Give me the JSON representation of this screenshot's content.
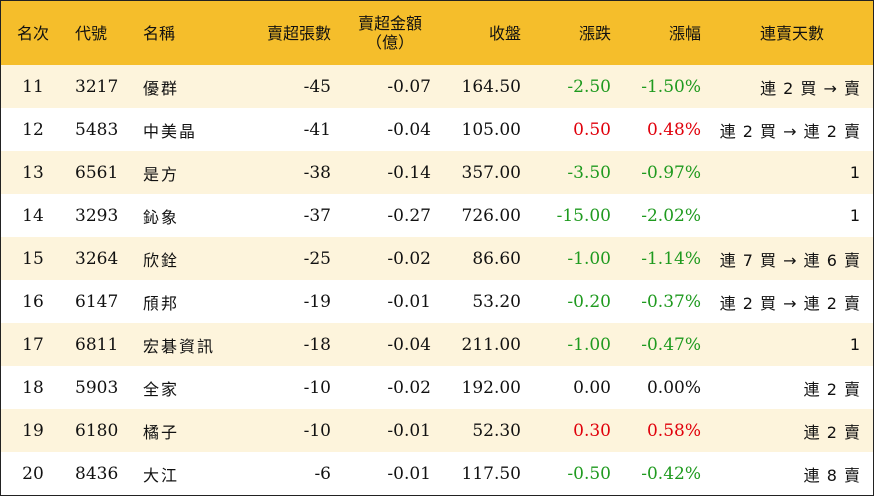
{
  "headers": {
    "rank": "名次",
    "code": "代號",
    "name": "名稱",
    "sell_lots": "賣超張數",
    "sell_amount_line1": "賣超金額",
    "sell_amount_line2": "（億）",
    "close": "收盤",
    "change": "漲跌",
    "pct": "漲幅",
    "days": "連賣天數"
  },
  "colors": {
    "header_bg": "#f5be2b",
    "stripe_bg": "#fdf4dc",
    "up": "#e0000b",
    "down": "#1f9a1f"
  },
  "rows": [
    {
      "rank": "11",
      "code": "3217",
      "name": "優群",
      "sell_lots": "-45",
      "sell_amount": "-0.07",
      "close": "164.50",
      "change": "-2.50",
      "pct": "-1.50%",
      "dir": "down",
      "days": "連 2 買 → 賣"
    },
    {
      "rank": "12",
      "code": "5483",
      "name": "中美晶",
      "sell_lots": "-41",
      "sell_amount": "-0.04",
      "close": "105.00",
      "change": "0.50",
      "pct": "0.48%",
      "dir": "up",
      "days": "連 2 買 → 連 2 賣"
    },
    {
      "rank": "13",
      "code": "6561",
      "name": "是方",
      "sell_lots": "-38",
      "sell_amount": "-0.14",
      "close": "357.00",
      "change": "-3.50",
      "pct": "-0.97%",
      "dir": "down",
      "days": "1"
    },
    {
      "rank": "14",
      "code": "3293",
      "name": "鈊象",
      "sell_lots": "-37",
      "sell_amount": "-0.27",
      "close": "726.00",
      "change": "-15.00",
      "pct": "-2.02%",
      "dir": "down",
      "days": "1"
    },
    {
      "rank": "15",
      "code": "3264",
      "name": "欣銓",
      "sell_lots": "-25",
      "sell_amount": "-0.02",
      "close": "86.60",
      "change": "-1.00",
      "pct": "-1.14%",
      "dir": "down",
      "days": "連 7 買 → 連 6 賣"
    },
    {
      "rank": "16",
      "code": "6147",
      "name": "頎邦",
      "sell_lots": "-19",
      "sell_amount": "-0.01",
      "close": "53.20",
      "change": "-0.20",
      "pct": "-0.37%",
      "dir": "down",
      "days": "連 2 買 → 連 2 賣"
    },
    {
      "rank": "17",
      "code": "6811",
      "name": "宏碁資訊",
      "sell_lots": "-18",
      "sell_amount": "-0.04",
      "close": "211.00",
      "change": "-1.00",
      "pct": "-0.47%",
      "dir": "down",
      "days": "1"
    },
    {
      "rank": "18",
      "code": "5903",
      "name": "全家",
      "sell_lots": "-10",
      "sell_amount": "-0.02",
      "close": "192.00",
      "change": "0.00",
      "pct": "0.00%",
      "dir": "flat",
      "days": "連 2 賣"
    },
    {
      "rank": "19",
      "code": "6180",
      "name": "橘子",
      "sell_lots": "-10",
      "sell_amount": "-0.01",
      "close": "52.30",
      "change": "0.30",
      "pct": "0.58%",
      "dir": "up",
      "days": "連 2 賣"
    },
    {
      "rank": "20",
      "code": "8436",
      "name": "大江",
      "sell_lots": "-6",
      "sell_amount": "-0.01",
      "close": "117.50",
      "change": "-0.50",
      "pct": "-0.42%",
      "dir": "down",
      "days": "連 8 賣"
    }
  ]
}
